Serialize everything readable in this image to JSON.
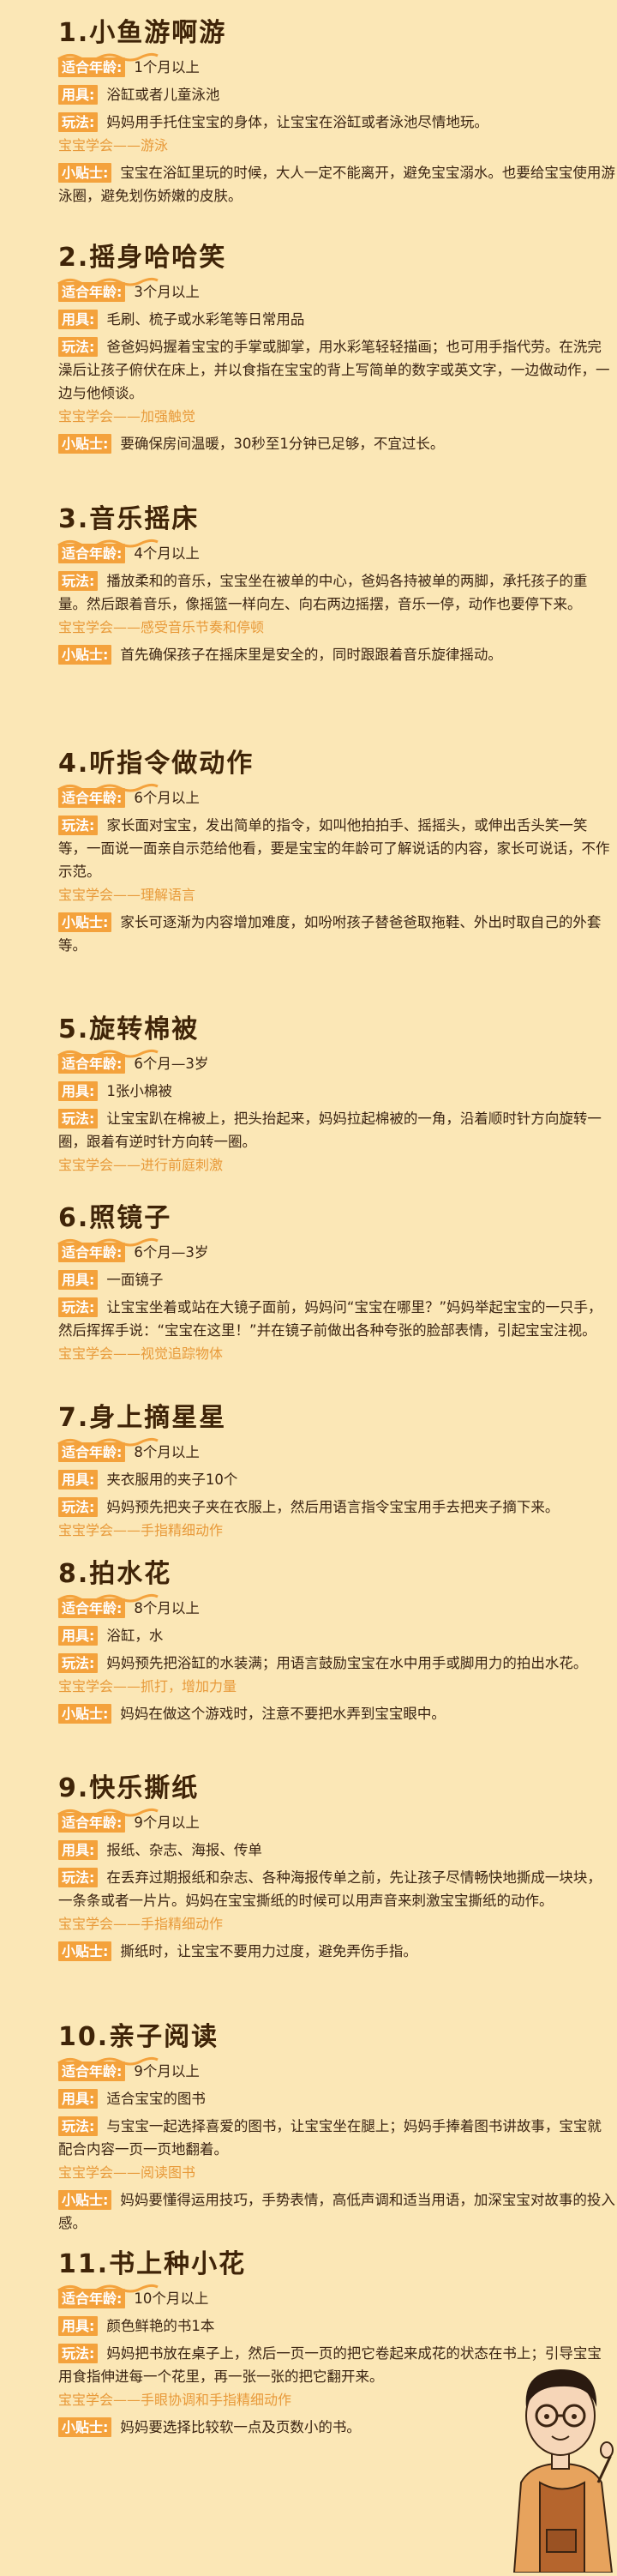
{
  "sections": [
    {
      "title": "1.小鱼游啊游",
      "rows": [
        {
          "label": "适合年龄:",
          "text": "1个月以上"
        },
        {
          "label": "用具:",
          "text": "浴缸或者儿童泳池"
        },
        {
          "label": "玩法:",
          "text": "妈妈用手托住宝宝的身体，让宝宝在浴缸或者泳池尽情地玩。"
        },
        {
          "label": "宝宝学会",
          "text": "——游泳",
          "style": "learn"
        },
        {
          "label": "小贴士:",
          "text": "宝宝在浴缸里玩的时候，大人一定不能离开，避免宝宝溺水。也要给宝宝使用游泳圈，避免划伤娇嫩的皮肤。"
        }
      ]
    },
    {
      "title": "2.摇身哈哈笑",
      "rows": [
        {
          "label": "适合年龄:",
          "text": "3个月以上"
        },
        {
          "label": "用具:",
          "text": "毛刷、梳子或水彩笔等日常用品"
        },
        {
          "label": "玩法:",
          "text": "爸爸妈妈握着宝宝的手掌或脚掌，用水彩笔轻轻描画；也可用手指代劳。在洗完澡后让孩子俯伏在床上，并以食指在宝宝的背上写简单的数字或英文字，一边做动作，一边与他倾谈。"
        },
        {
          "label": "宝宝学会",
          "text": "——加强触觉",
          "style": "learn"
        },
        {
          "label": "小贴士:",
          "text": "要确保房间温暖，30秒至1分钟已足够，不宜过长。"
        }
      ]
    },
    {
      "title": "3.音乐摇床",
      "rows": [
        {
          "label": "适合年龄:",
          "text": "4个月以上"
        },
        {
          "label": "玩法:",
          "text": "播放柔和的音乐，宝宝坐在被单的中心，爸妈各持被单的两脚，承托孩子的重量。然后跟着音乐，像摇篮一样向左、向右两边摇摆，音乐一停，动作也要停下来。"
        },
        {
          "label": "宝宝学会",
          "text": "——感受音乐节奏和停顿",
          "style": "learn"
        },
        {
          "label": "小贴士:",
          "text": "首先确保孩子在摇床里是安全的，同时跟跟着音乐旋律摇动。"
        }
      ]
    },
    {
      "title": "4.听指令做动作",
      "rows": [
        {
          "label": "适合年龄:",
          "text": "6个月以上"
        },
        {
          "label": "玩法:",
          "text": "家长面对宝宝，发出简单的指令，如叫他拍拍手、摇摇头，或伸出舌头笑一笑等，一面说一面亲自示范给他看，要是宝宝的年龄可了解说话的内容，家长可说话，不作示范。"
        },
        {
          "label": "宝宝学会",
          "text": "——理解语言",
          "style": "learn"
        },
        {
          "label": "小贴士:",
          "text": "家长可逐渐为内容增加难度，如吩咐孩子替爸爸取拖鞋、外出时取自己的外套等。"
        }
      ]
    },
    {
      "title": "5.旋转棉被",
      "rows": [
        {
          "label": "适合年龄:",
          "text": "6个月—3岁"
        },
        {
          "label": "用具:",
          "text": "1张小棉被"
        },
        {
          "label": "玩法:",
          "text": "让宝宝趴在棉被上，把头抬起来，妈妈拉起棉被的一角，沿着顺时针方向旋转一圈，跟着有逆时针方向转一圈。"
        },
        {
          "label": "宝宝学会",
          "text": "——进行前庭刺激",
          "style": "learn"
        }
      ]
    },
    {
      "title": "6.照镜子",
      "rows": [
        {
          "label": "适合年龄:",
          "text": "6个月—3岁"
        },
        {
          "label": "用具:",
          "text": "一面镜子"
        },
        {
          "label": "玩法:",
          "text": "让宝宝坐着或站在大镜子面前，妈妈问“宝宝在哪里？”妈妈举起宝宝的一只手，然后挥挥手说：“宝宝在这里！”并在镜子前做出各种夸张的脸部表情，引起宝宝注视。"
        },
        {
          "label": "宝宝学会",
          "text": "——视觉追踪物体",
          "style": "learn"
        }
      ]
    },
    {
      "title": "7.身上摘星星",
      "rows": [
        {
          "label": "适合年龄:",
          "text": "8个月以上"
        },
        {
          "label": "用具:",
          "text": "夹衣服用的夹子10个"
        },
        {
          "label": "玩法:",
          "text": "妈妈预先把夹子夹在衣服上，然后用语言指令宝宝用手去把夹子摘下来。"
        },
        {
          "label": "宝宝学会",
          "text": "——手指精细动作",
          "style": "learn"
        }
      ]
    },
    {
      "title": "8.拍水花",
      "rows": [
        {
          "label": "适合年龄:",
          "text": "8个月以上"
        },
        {
          "label": "用具:",
          "text": "浴缸，水"
        },
        {
          "label": "玩法:",
          "text": "妈妈预先把浴缸的水装满；用语言鼓励宝宝在水中用手或脚用力的拍出水花。"
        },
        {
          "label": "宝宝学会",
          "text": "——抓打，增加力量",
          "style": "learn"
        },
        {
          "label": "小贴士:",
          "text": "妈妈在做这个游戏时，注意不要把水弄到宝宝眼中。"
        }
      ]
    },
    {
      "title": "9.快乐撕纸",
      "rows": [
        {
          "label": "适合年龄:",
          "text": "9个月以上"
        },
        {
          "label": "用具:",
          "text": "报纸、杂志、海报、传单"
        },
        {
          "label": "玩法:",
          "text": "在丢弃过期报纸和杂志、各种海报传单之前，先让孩子尽情畅快地撕成一块块，一条条或者一片片。妈妈在宝宝撕纸的时候可以用声音来刺激宝宝撕纸的动作。"
        },
        {
          "label": "宝宝学会",
          "text": "——手指精细动作",
          "style": "learn"
        },
        {
          "label": "小贴士:",
          "text": "撕纸时，让宝宝不要用力过度，避免弄伤手指。"
        }
      ]
    },
    {
      "title": "10.亲子阅读",
      "rows": [
        {
          "label": "适合年龄:",
          "text": "9个月以上"
        },
        {
          "label": "用具:",
          "text": "适合宝宝的图书"
        },
        {
          "label": "玩法:",
          "text": "与宝宝一起选择喜爱的图书，让宝宝坐在腿上；妈妈手捧着图书讲故事，宝宝就配合内容一页一页地翻着。"
        },
        {
          "label": "宝宝学会",
          "text": "——阅读图书",
          "style": "learn"
        },
        {
          "label": "小贴士:",
          "text": "妈妈要懂得运用技巧，手势表情，高低声调和适当用语，加深宝宝对故事的投入感。"
        }
      ]
    },
    {
      "title": "11.书上种小花",
      "rows": [
        {
          "label": "适合年龄:",
          "text": "10个月以上"
        },
        {
          "label": "用具:",
          "text": "颜色鲜艳的书1本"
        },
        {
          "label": "玩法:",
          "text": "妈妈把书放在桌子上，然后一页一页的把它卷起来成花的状态在书上；引导宝宝用食指伸进每一个花里，再一张一张的把它翻开来。"
        },
        {
          "label": "宝宝学会",
          "text": "——手眼协调和手指精细动作",
          "style": "learn"
        },
        {
          "label": "小贴士:",
          "text": "妈妈要选择比较软一点及页数小的书。"
        }
      ]
    }
  ],
  "colors": {
    "background": "#fbe7b6",
    "label_bg": "#f4a23c",
    "learn_text": "#e89a3a",
    "title_text": "#3f2408"
  }
}
